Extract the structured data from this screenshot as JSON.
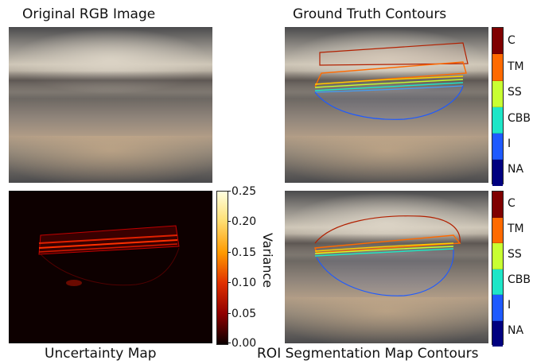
{
  "titles": {
    "original": "Original RGB Image",
    "ground_truth": "Ground Truth Contours",
    "uncertainty": "Uncertainty Map",
    "roi": "ROI Segmentation Map Contours"
  },
  "class_legend": {
    "labels": [
      "C",
      "TM",
      "SS",
      "CBB",
      "I",
      "NA"
    ],
    "colors": [
      "#7f0000",
      "#ff6a00",
      "#c8ff32",
      "#1ee6c8",
      "#1e5aff",
      "#00007f"
    ]
  },
  "variance_colorbar": {
    "label": "Variance",
    "ticks": [
      "0.25",
      "0.20",
      "0.15",
      "0.10",
      "0.05",
      "0.00"
    ],
    "colors": [
      "#ffffe0",
      "#ffe27a",
      "#ff9a00",
      "#e03000",
      "#900000",
      "#0b0000"
    ]
  }
}
